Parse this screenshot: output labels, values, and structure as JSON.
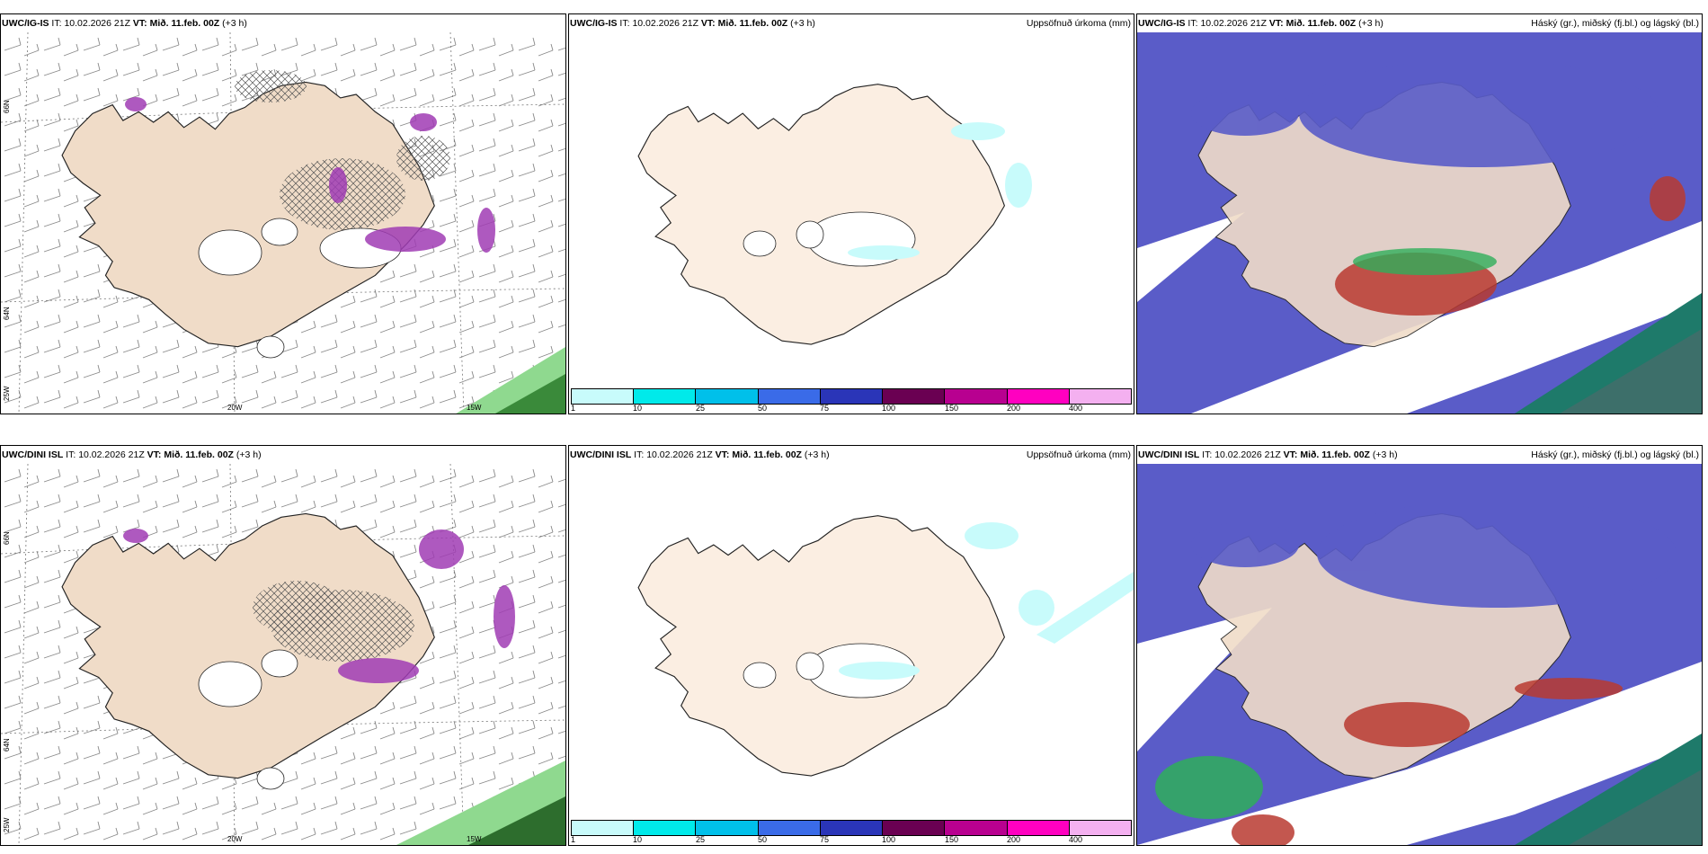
{
  "rows": [
    {
      "model": "UWC/IG-IS",
      "it_label": "IT:",
      "it_value": "10.02.2026 21Z",
      "vt_label": "VT:",
      "vt_value": "Mið. 11.feb. 00Z",
      "lead": "(+3 h)"
    },
    {
      "model": "UWC/DINI ISL",
      "it_label": "IT:",
      "it_value": "10.02.2026 21Z",
      "vt_label": "VT:",
      "vt_value": "Mið. 11.feb. 00Z",
      "lead": "(+3 h)"
    }
  ],
  "panels": {
    "precip_title": "Uppsöfnuð úrkoma (mm)",
    "cloud_title": "Háský (gr.), miðský (fj.bl.) og lágský (bl.)"
  },
  "grid_labels": {
    "lon_20w": "20W",
    "lon_15w": "15W",
    "lon_25w": "25W",
    "lat_66n": "66N",
    "lat_64n": "64N"
  },
  "colorbar": {
    "ticks": [
      "1",
      "10",
      "25",
      "50",
      "75",
      "100",
      "150",
      "200",
      "400"
    ],
    "colors": [
      "#c8fbfb",
      "#00eaea",
      "#00c0ea",
      "#3a6be8",
      "#2a35b8",
      "#6a0052",
      "#b80090",
      "#ff00c0",
      "#f4b0f0"
    ]
  },
  "colors": {
    "land": "#f0dcc8",
    "land_light": "#fbeee2",
    "coast": "#222222",
    "low_cloud": "#5a5cc8",
    "mid_cloud": "#2fae5a",
    "high_cloud": "#b83a30",
    "precip_purple": "#a03cb4",
    "precip_green": "#8fd98f"
  }
}
